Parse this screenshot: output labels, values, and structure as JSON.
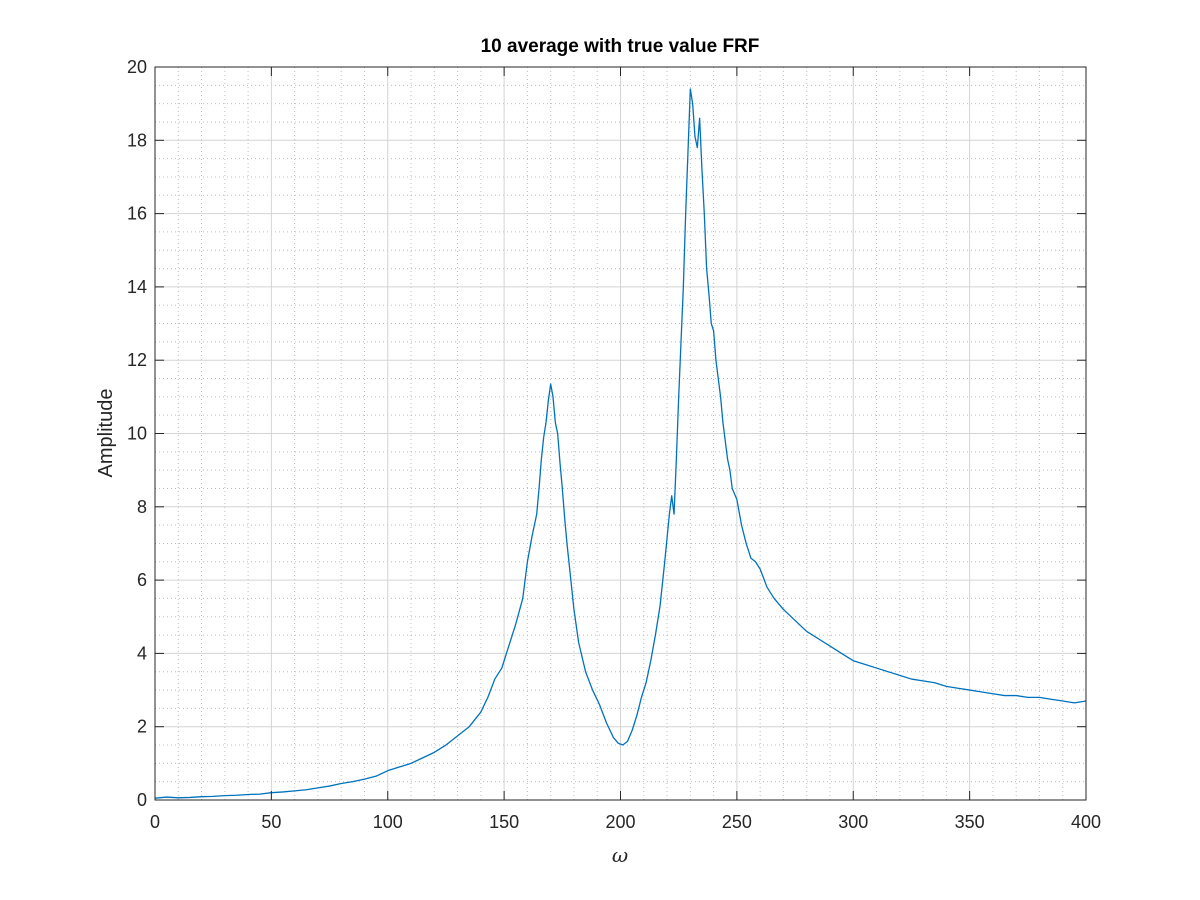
{
  "colors": {
    "line": "#0072bd",
    "axes": "#262626",
    "major_grid": "#d4d4d4",
    "minor_grid": "#bdbdbd",
    "background": "#ffffff"
  },
  "chart_data": {
    "type": "line",
    "title": "10 average with true value FRF",
    "xlabel": "ω",
    "ylabel": "Amplitude",
    "xlim": [
      0,
      400
    ],
    "ylim": [
      0,
      20
    ],
    "xticks": [
      0,
      50,
      100,
      150,
      200,
      250,
      300,
      350,
      400
    ],
    "yticks": [
      0,
      2,
      4,
      6,
      8,
      10,
      12,
      14,
      16,
      18,
      20
    ],
    "xtick_labels": [
      "0",
      "50",
      "100",
      "150",
      "200",
      "250",
      "300",
      "350",
      "400"
    ],
    "ytick_labels": [
      "0",
      "2",
      "4",
      "6",
      "8",
      "10",
      "12",
      "14",
      "16",
      "18",
      "20"
    ],
    "grid": true,
    "minor_grid": true,
    "legend": "none",
    "series": [
      {
        "x": [
          0,
          5,
          10,
          15,
          20,
          25,
          30,
          35,
          40,
          45,
          50,
          55,
          60,
          65,
          70,
          75,
          80,
          85,
          90,
          95,
          100,
          105,
          110,
          115,
          120,
          125,
          130,
          135,
          140,
          143,
          146,
          149,
          152,
          155,
          158,
          160,
          162,
          164,
          165,
          166,
          167,
          168,
          169,
          170,
          171,
          172,
          173,
          174,
          175,
          176,
          177,
          178,
          180,
          182,
          185,
          188,
          191,
          194,
          197,
          199,
          201,
          203,
          205,
          207,
          209,
          211,
          213,
          215,
          217,
          219,
          221,
          222,
          223,
          224,
          225,
          226,
          227,
          228,
          229,
          230,
          231,
          232,
          233,
          234,
          235,
          236,
          237,
          238,
          239,
          240,
          241,
          242,
          243,
          244,
          245,
          246,
          247,
          248,
          250,
          252,
          254,
          256,
          258,
          260,
          263,
          266,
          270,
          275,
          280,
          285,
          290,
          295,
          300,
          305,
          310,
          315,
          320,
          325,
          330,
          335,
          340,
          345,
          350,
          355,
          360,
          365,
          370,
          375,
          380,
          385,
          390,
          395,
          400
        ],
        "y": [
          0.05,
          0.08,
          0.06,
          0.07,
          0.09,
          0.1,
          0.12,
          0.13,
          0.15,
          0.16,
          0.2,
          0.22,
          0.25,
          0.28,
          0.33,
          0.38,
          0.45,
          0.5,
          0.57,
          0.65,
          0.8,
          0.9,
          1.0,
          1.15,
          1.3,
          1.5,
          1.75,
          2.0,
          2.4,
          2.8,
          3.3,
          3.6,
          4.2,
          4.8,
          5.5,
          6.5,
          7.2,
          7.8,
          8.5,
          9.3,
          9.9,
          10.3,
          10.9,
          11.35,
          11.0,
          10.3,
          10.0,
          9.2,
          8.5,
          7.7,
          7.0,
          6.4,
          5.2,
          4.3,
          3.5,
          3.0,
          2.6,
          2.1,
          1.7,
          1.55,
          1.5,
          1.6,
          1.9,
          2.3,
          2.8,
          3.2,
          3.8,
          4.5,
          5.3,
          6.5,
          7.8,
          8.3,
          7.8,
          9.3,
          11.0,
          12.5,
          14.0,
          16.0,
          17.7,
          19.4,
          19.0,
          18.1,
          17.8,
          18.6,
          17.2,
          16.0,
          14.5,
          13.8,
          13.0,
          12.8,
          12.0,
          11.5,
          11.0,
          10.3,
          9.8,
          9.3,
          9.0,
          8.5,
          8.2,
          7.5,
          7.0,
          6.6,
          6.5,
          6.3,
          5.8,
          5.5,
          5.2,
          4.9,
          4.6,
          4.4,
          4.2,
          4.0,
          3.8,
          3.7,
          3.6,
          3.5,
          3.4,
          3.3,
          3.25,
          3.2,
          3.1,
          3.05,
          3.0,
          2.95,
          2.9,
          2.85,
          2.85,
          2.8,
          2.8,
          2.75,
          2.7,
          2.65,
          2.7
        ]
      }
    ]
  }
}
